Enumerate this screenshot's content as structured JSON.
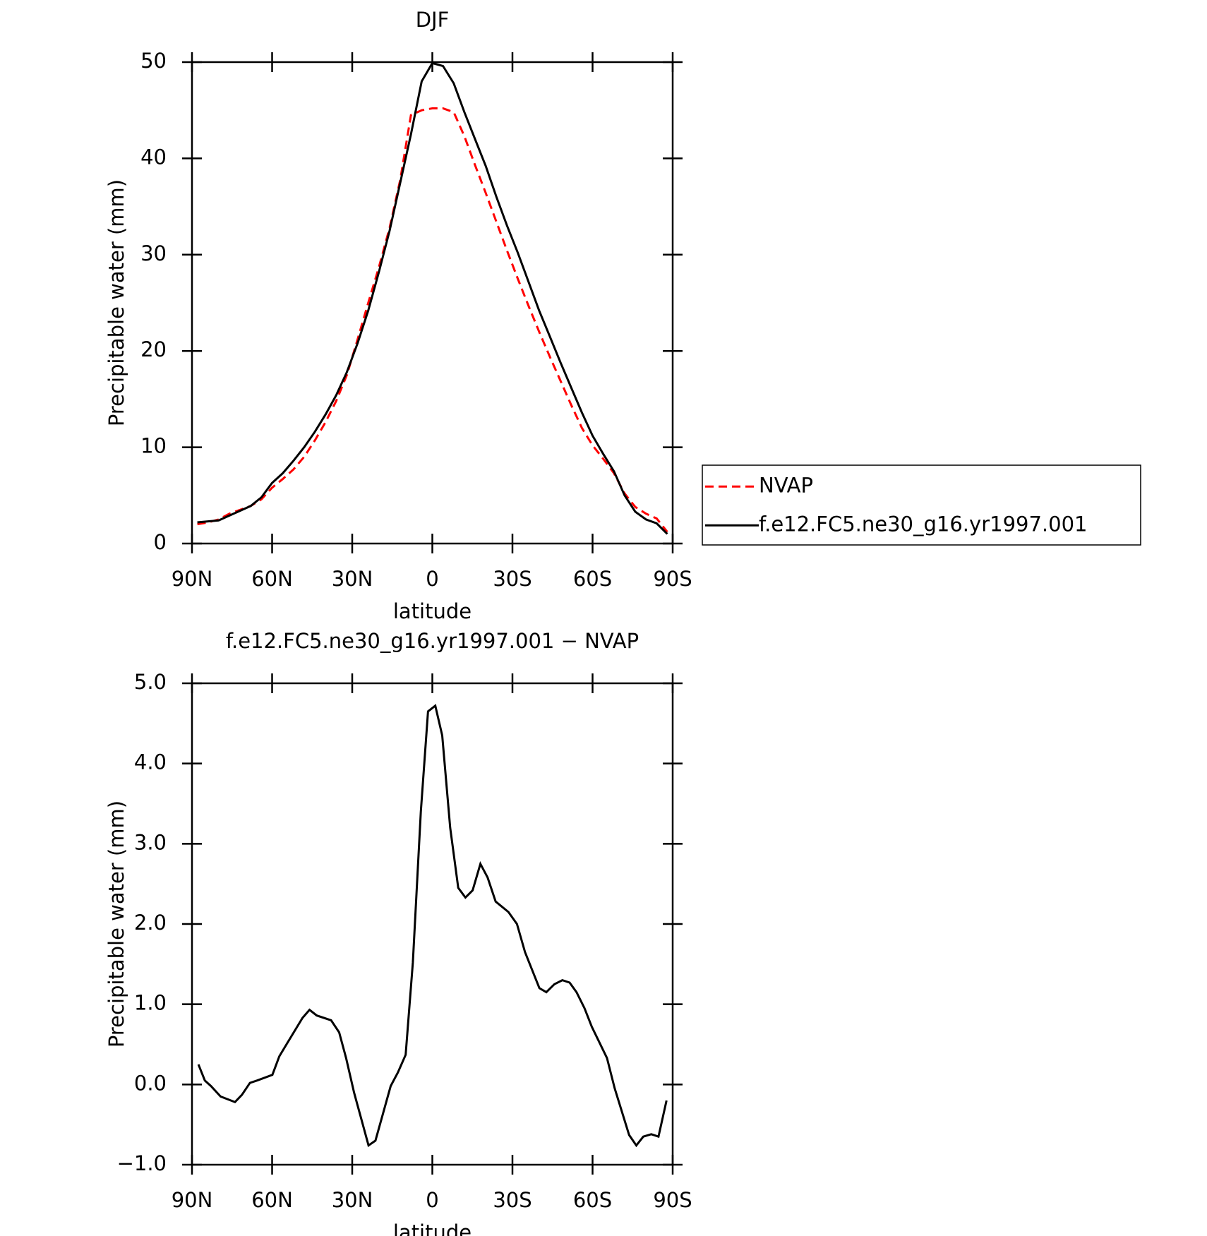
{
  "chart_data": [
    {
      "type": "line",
      "title": "DJF",
      "xlabel": "latitude",
      "ylabel": "Precipitable water (mm)",
      "x": [
        88,
        84,
        80,
        76,
        72,
        68,
        64,
        60,
        56,
        52,
        48,
        44,
        40,
        36,
        32,
        28,
        24,
        20,
        16,
        12,
        8,
        4,
        0,
        -4,
        -8,
        -12,
        -16,
        -20,
        -24,
        -28,
        -32,
        -36,
        -40,
        -44,
        -48,
        -52,
        -56,
        -60,
        -64,
        -68,
        -72,
        -76,
        -80,
        -84,
        -88
      ],
      "series": [
        {
          "name": "NVAP",
          "color": "#ff0000",
          "line_style": "dashed",
          "values": [
            2.0,
            2.2,
            2.5,
            3.1,
            3.5,
            3.9,
            4.6,
            5.8,
            6.7,
            7.7,
            9.0,
            10.7,
            12.6,
            14.8,
            17.5,
            21.2,
            25.0,
            28.7,
            32.8,
            37.8,
            44.5,
            45.0,
            45.2,
            45.2,
            44.8,
            42.3,
            39.3,
            36.4,
            33.4,
            30.4,
            27.5,
            24.7,
            22.0,
            19.4,
            16.9,
            14.4,
            12.0,
            10.2,
            8.8,
            7.3,
            5.2,
            3.8,
            3.1,
            2.6,
            1.2
          ]
        },
        {
          "name": "f.e12.FC5.ne30_g16.yr1997.001",
          "color": "#000000",
          "line_style": "solid",
          "values": [
            2.2,
            2.3,
            2.4,
            2.9,
            3.4,
            3.9,
            4.8,
            6.3,
            7.3,
            8.6,
            10.0,
            11.6,
            13.4,
            15.4,
            17.8,
            20.8,
            24.2,
            28.2,
            32.5,
            37.5,
            42.5,
            48.0,
            49.9,
            49.6,
            47.8,
            44.8,
            42.0,
            39.2,
            36.0,
            33.0,
            30.2,
            27.2,
            24.2,
            21.5,
            18.8,
            16.2,
            13.6,
            11.2,
            9.3,
            7.5,
            5.0,
            3.3,
            2.5,
            2.1,
            1.0
          ]
        }
      ],
      "xlim": [
        90,
        -90
      ],
      "xticks": [
        {
          "value": 90,
          "label": "90N"
        },
        {
          "value": 60,
          "label": "60N"
        },
        {
          "value": 30,
          "label": "30N"
        },
        0,
        {
          "value": -30,
          "label": "30S"
        },
        {
          "value": -60,
          "label": "60S"
        },
        {
          "value": -90,
          "label": "90S"
        }
      ],
      "ylim": [
        0,
        50
      ],
      "yticks": [
        0,
        10,
        20,
        30,
        40,
        50
      ],
      "legend": "right",
      "grid": false
    },
    {
      "type": "line",
      "title": "f.e12.FC5.ne30_g16.yr1997.001 − NVAP",
      "xlabel": "latitude",
      "ylabel": "Precipitable water (mm)",
      "x": [
        87.6,
        85.2,
        82.9,
        79.3,
        73.9,
        71.3,
        68.3,
        65.6,
        59.9,
        57.3,
        54.6,
        48.6,
        46,
        43.3,
        37.9,
        34.9,
        32.3,
        29.3,
        23.9,
        21.3,
        15.6,
        12.9,
        10,
        7.3,
        4.3,
        1.6,
        -1.1,
        -3.7,
        -6.7,
        -9.7,
        -12.4,
        -15.1,
        -18,
        -20.7,
        -23.7,
        -28.5,
        -31.7,
        -34.7,
        -40.1,
        -42.7,
        -45.7,
        -48.7,
        -51.4,
        -54,
        -57,
        -59.7,
        -65.4,
        -68.3,
        -73.7,
        -76.4,
        -79,
        -82,
        -84.7,
        -87.7
      ],
      "values": [
        0.25,
        0.05,
        -0.02,
        -0.15,
        -0.22,
        -0.13,
        0.02,
        0.05,
        0.12,
        0.35,
        0.5,
        0.83,
        0.93,
        0.86,
        0.8,
        0.65,
        0.33,
        -0.1,
        -0.76,
        -0.7,
        -0.02,
        0.15,
        0.37,
        1.52,
        3.4,
        4.65,
        4.72,
        4.35,
        3.2,
        2.45,
        2.33,
        2.42,
        2.75,
        2.58,
        2.28,
        2.15,
        2.0,
        1.65,
        1.2,
        1.15,
        1.25,
        1.3,
        1.27,
        1.15,
        0.95,
        0.72,
        0.33,
        -0.05,
        -0.63,
        -0.76,
        -0.65,
        -0.62,
        -0.65,
        -0.2
      ],
      "color": "#000000",
      "xlim": [
        90,
        -90
      ],
      "xticks": [
        {
          "value": 90,
          "label": "90N"
        },
        {
          "value": 60,
          "label": "60N"
        },
        {
          "value": 30,
          "label": "30N"
        },
        0,
        {
          "value": -30,
          "label": "30S"
        },
        {
          "value": -60,
          "label": "60S"
        },
        {
          "value": -90,
          "label": "90S"
        }
      ],
      "ylim": [
        -1,
        5
      ],
      "yticks": [
        {
          "value": -1,
          "label": "−1.0"
        },
        {
          "value": 0,
          "label": "0.0"
        },
        {
          "value": 1,
          "label": "1.0"
        },
        {
          "value": 2,
          "label": "2.0"
        },
        {
          "value": 3,
          "label": "3.0"
        },
        {
          "value": 4,
          "label": "4.0"
        },
        {
          "value": 5,
          "label": "5.0"
        }
      ],
      "grid": false
    }
  ]
}
